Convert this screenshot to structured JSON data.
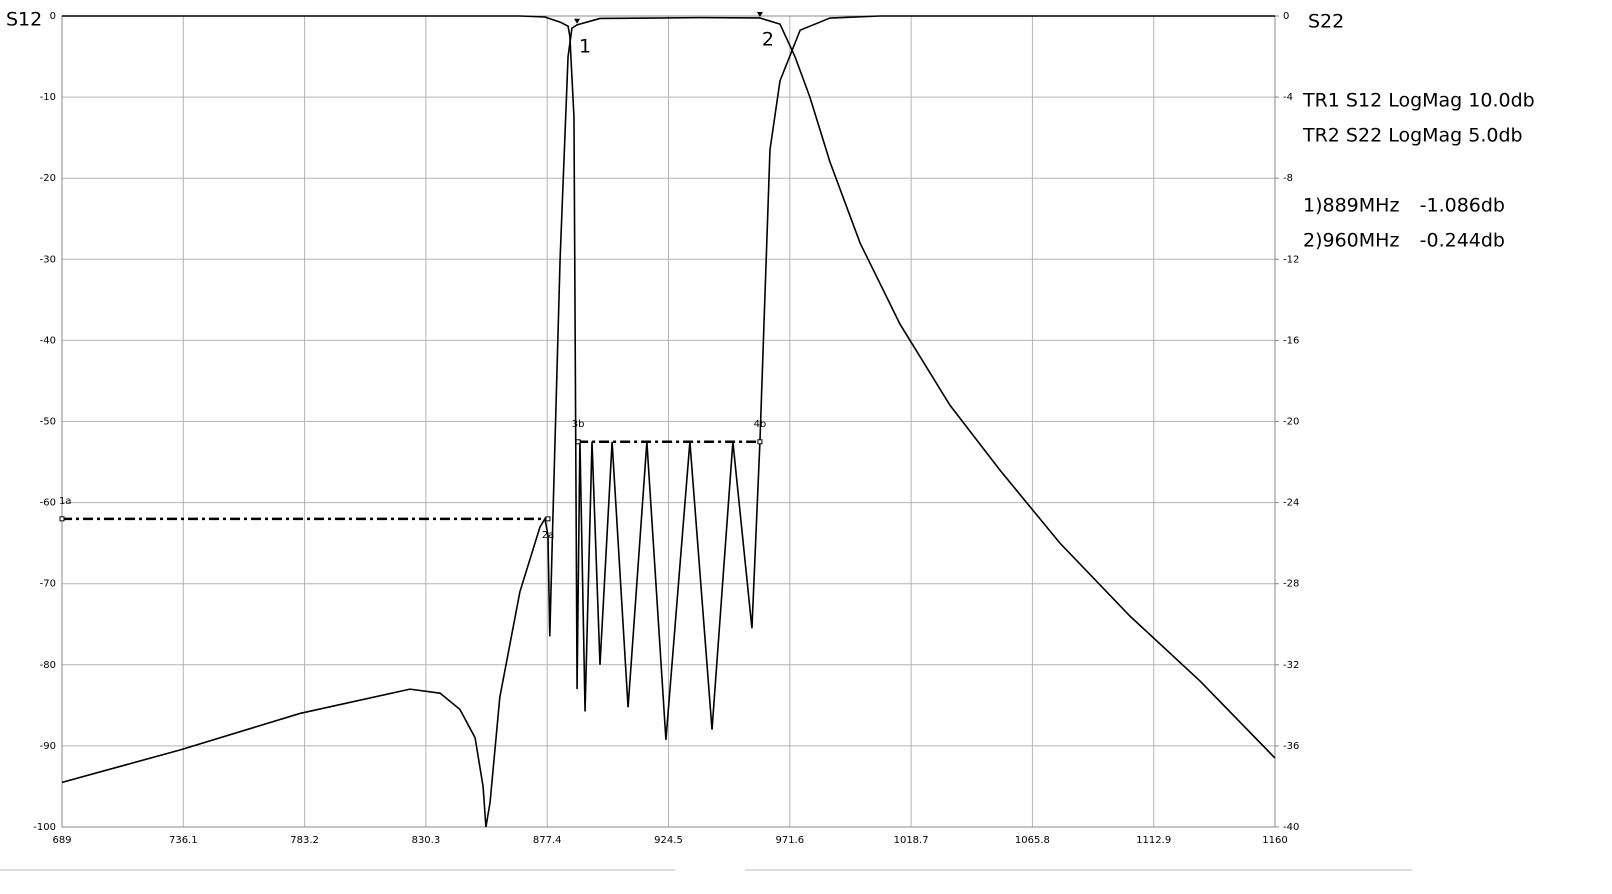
{
  "chart_data": {
    "type": "line",
    "xlim": [
      689,
      1160
    ],
    "xticks": [
      689,
      736.1,
      783.2,
      830.3,
      877.4,
      924.5,
      971.6,
      1018.7,
      1065.8,
      1112.9,
      1160
    ],
    "ylim": [
      -100,
      0
    ],
    "yticks": [
      0,
      -10,
      -20,
      -30,
      -40,
      -50,
      -60,
      -70,
      -80,
      -90,
      -100
    ],
    "y2lim": [
      -40,
      0
    ],
    "y2ticks": [
      0,
      -4,
      -8,
      -12,
      -16,
      -20,
      -24,
      -28,
      -32,
      -36,
      -40
    ],
    "ylabel": "S12",
    "y2label": "S22",
    "grid": true,
    "annotations": [
      "TR1 S12 LogMag 10.0db",
      "TR2 S22 LogMag 5.0db"
    ],
    "series": [
      {
        "name": "S12",
        "color": "#000000",
        "axis": "y",
        "x": [
          689,
          734.8,
          781.4,
          824.1,
          835.8,
          843.5,
          849.4,
          852.5,
          853.6,
          855.2,
          859,
          866.8,
          874.6,
          876.5,
          877.7,
          878.4,
          879.6,
          882.4,
          885.5,
          887,
          889,
          897.9,
          936.7,
          960,
          967.8,
          973.6,
          979.4,
          987.2,
          998.9,
          1014.4,
          1033.8,
          1053.2,
          1076.5,
          1103.7,
          1130.9,
          1160
        ],
        "values": [
          -94.5,
          -90.5,
          -86,
          -83,
          -83.5,
          -85.5,
          -89,
          -95,
          -100,
          -97,
          -84,
          -71,
          -63,
          -62,
          -64,
          -76.5,
          -62,
          -30,
          -5,
          -1.5,
          -1.086,
          -0.3,
          -0.2,
          -0.244,
          -1,
          -5,
          -10,
          -18,
          -28,
          -38,
          -48,
          -56,
          -65,
          -74,
          -82,
          -91.5
        ]
      },
      {
        "name": "S22",
        "color": "#000000",
        "axis": "y2",
        "x": [
          689,
          866.8,
          876.5,
          882.4,
          885.5,
          886.2,
          887.8,
          889,
          890.1,
          892.1,
          894.8,
          897.9,
          902.6,
          908.8,
          916.1,
          923.5,
          932.8,
          941.4,
          949.5,
          956.9,
          960,
          963.9,
          967.8,
          975.6,
          987.2,
          1006.6,
          1160
        ],
        "values": [
          0,
          0,
          -0.05,
          -0.3,
          -0.5,
          -1,
          -5,
          -33.2,
          -20.9,
          -34.3,
          -21,
          -32,
          -21,
          -34.1,
          -21,
          -35.7,
          -21,
          -35.2,
          -21,
          -30.2,
          -21,
          -6.6,
          -3.2,
          -0.7,
          -0.1,
          0,
          0
        ]
      }
    ],
    "limits": [
      {
        "axis": "y",
        "value": -62,
        "x": [
          689,
          877.7
        ],
        "labels": [
          "1a",
          "2a"
        ]
      },
      {
        "axis": "y2",
        "value": -21,
        "x": [
          889.4,
          960
        ],
        "labels": [
          "3b",
          "4b"
        ]
      }
    ],
    "markers": [
      {
        "name": "1",
        "x": 889,
        "value": -1.086,
        "readout": "1)889MHz",
        "value_label": "-1.086db"
      },
      {
        "name": "2",
        "x": 960,
        "value": -0.244,
        "readout": "2)960MHz",
        "value_label": "-0.244db"
      }
    ]
  }
}
